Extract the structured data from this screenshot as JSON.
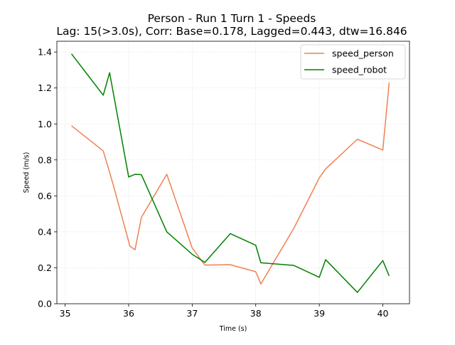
{
  "chart_data": {
    "type": "line",
    "title": "Person - Run 1 Turn 1 - Speeds",
    "subtitle": "Lag: 15(>3.0s), Corr: Base=0.178, Lagged=0.443, dtw=16.846",
    "xlabel": "Time (s)",
    "ylabel": "Speed (m/s)",
    "xlim": [
      34.87,
      40.42
    ],
    "ylim": [
      0.0,
      1.46
    ],
    "xticks": [
      35,
      36,
      37,
      38,
      39,
      40
    ],
    "xtick_labels": [
      "35",
      "36",
      "37",
      "38",
      "39",
      "40"
    ],
    "yticks": [
      0.0,
      0.2,
      0.4,
      0.6,
      0.8,
      1.0,
      1.2,
      1.4
    ],
    "ytick_labels": [
      "0.0",
      "0.2",
      "0.4",
      "0.6",
      "0.8",
      "1.0",
      "1.2",
      "1.4"
    ],
    "grid": true,
    "legend_position": "top-right",
    "series": [
      {
        "name": "speed_person",
        "color": "#f08050",
        "x": [
          35.1,
          35.6,
          35.75,
          36.02,
          36.1,
          36.2,
          36.6,
          37.0,
          37.2,
          37.6,
          38.0,
          38.08,
          38.6,
          39.0,
          39.1,
          39.6,
          40.0,
          40.1
        ],
        "y": [
          0.99,
          0.85,
          0.67,
          0.32,
          0.3,
          0.48,
          0.72,
          0.31,
          0.215,
          0.217,
          0.178,
          0.11,
          0.42,
          0.7,
          0.75,
          0.915,
          0.855,
          1.23
        ]
      },
      {
        "name": "speed_robot",
        "color": "#008000",
        "x": [
          35.1,
          35.6,
          35.7,
          36.0,
          36.1,
          36.2,
          36.6,
          37.0,
          37.2,
          37.6,
          38.0,
          38.08,
          38.6,
          39.0,
          39.1,
          39.6,
          40.0,
          40.1
        ],
        "y": [
          1.39,
          1.16,
          1.285,
          0.705,
          0.72,
          0.718,
          0.4,
          0.275,
          0.23,
          0.39,
          0.325,
          0.228,
          0.213,
          0.147,
          0.245,
          0.063,
          0.24,
          0.155
        ]
      }
    ]
  }
}
